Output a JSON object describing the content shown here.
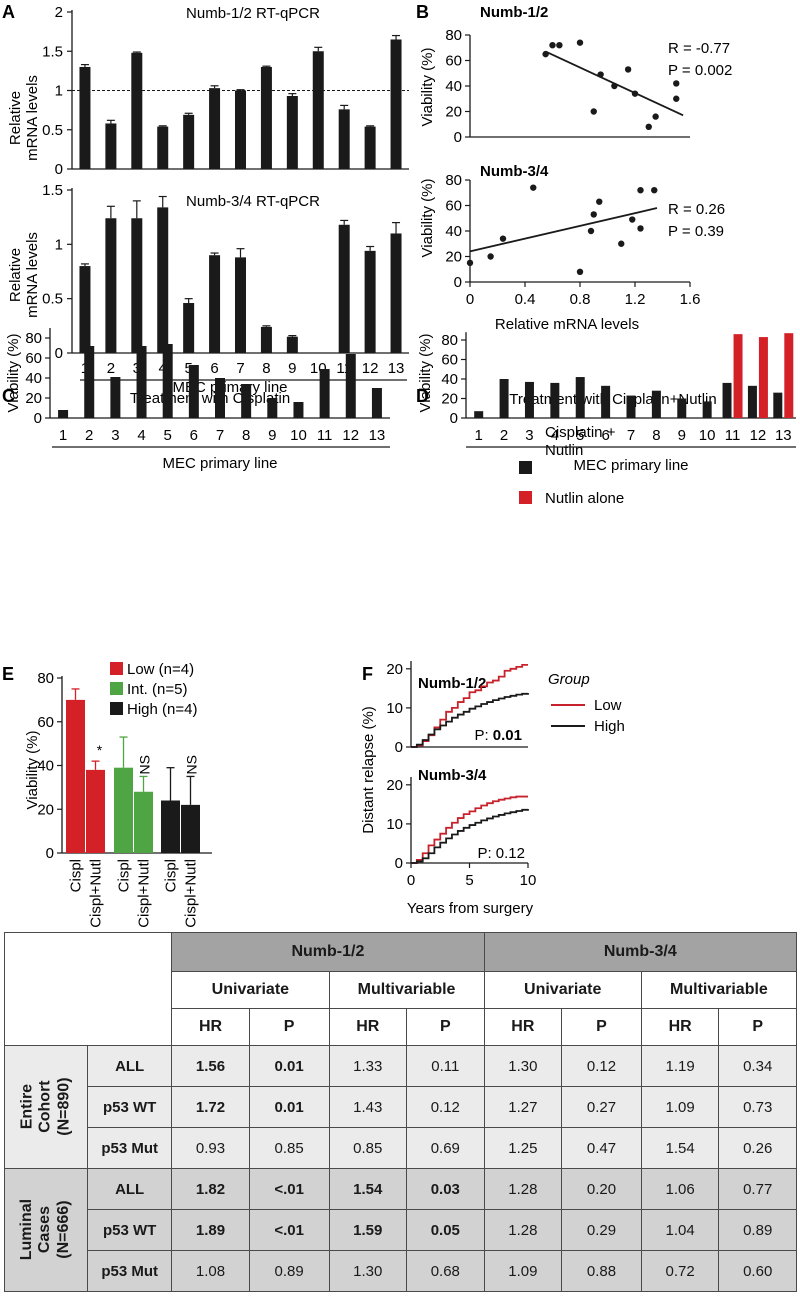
{
  "panel_letters": {
    "A": "A",
    "B": "B",
    "C": "C",
    "D": "D",
    "E": "E",
    "F": "F",
    "G": "G"
  },
  "chart_data": [
    {
      "id": "A_top",
      "type": "bar",
      "title": "Numb-1/2 RT-qPCR",
      "ylabel": "Relative mRNA levels",
      "ylabel_lines": [
        "Relative",
        "mRNA levels"
      ],
      "categories": [
        "1",
        "2",
        "3",
        "4",
        "5",
        "6",
        "7",
        "8",
        "9",
        "10",
        "11",
        "12",
        "13"
      ],
      "values": [
        1.3,
        0.58,
        1.48,
        0.54,
        0.69,
        1.03,
        1.0,
        1.3,
        0.93,
        1.5,
        0.76,
        0.54,
        1.65
      ],
      "errors": [
        0.03,
        0.04,
        0.01,
        0.01,
        0.02,
        0.03,
        0.01,
        0.01,
        0.03,
        0.05,
        0.05,
        0.01,
        0.05
      ],
      "reference_line": 1,
      "ylim": [
        0,
        2
      ],
      "yticks": [
        "0",
        "0.5",
        "1",
        "1.5",
        "2"
      ]
    },
    {
      "id": "A_bottom",
      "type": "bar",
      "title": "Numb-3/4 RT-qPCR",
      "ylabel": "Relative mRNA levels",
      "ylabel_lines": [
        "Relative",
        "mRNA levels"
      ],
      "categories": [
        "1",
        "2",
        "3",
        "4",
        "5",
        "6",
        "7",
        "8",
        "9",
        "10",
        "11",
        "12",
        "13"
      ],
      "values": [
        0.8,
        1.24,
        1.24,
        1.34,
        0.46,
        0.9,
        0.88,
        0.24,
        0.15,
        0.0,
        1.18,
        0.94,
        1.1
      ],
      "errors": [
        0.02,
        0.11,
        0.16,
        0.1,
        0.04,
        0.02,
        0.08,
        0.01,
        0.01,
        0.0,
        0.04,
        0.04,
        0.1
      ],
      "ylim": [
        0,
        1.5
      ],
      "yticks": [
        "0",
        "0.5",
        "1",
        "1.5"
      ],
      "xlabel": "MEC primary line"
    },
    {
      "id": "B_top",
      "type": "scatter",
      "title": "Numb-1/2",
      "ylabel": "Viability (%)",
      "x": [
        0.55,
        0.6,
        0.65,
        0.8,
        0.95,
        1.05,
        0.9,
        1.15,
        1.2,
        1.3,
        1.5,
        1.35,
        1.5
      ],
      "y": [
        65,
        72,
        72,
        74,
        49,
        40,
        20,
        53,
        34,
        8,
        42,
        16,
        30
      ],
      "fit_line": {
        "x": [
          0.55,
          1.55
        ],
        "y": [
          67,
          17
        ]
      },
      "stats": [
        "R = -0.77",
        "P = 0.002"
      ],
      "xlim": [
        0,
        1.6
      ],
      "ylim": [
        0,
        80
      ],
      "yticks": [
        "0",
        "20",
        "40",
        "60",
        "80"
      ]
    },
    {
      "id": "B_bottom",
      "type": "scatter",
      "title": "Numb-3/4",
      "ylabel": "Viability (%)",
      "xlabel": "Relative mRNA levels",
      "x": [
        0.0,
        0.15,
        0.24,
        0.46,
        0.8,
        0.88,
        0.9,
        0.94,
        1.1,
        1.18,
        1.24,
        1.24,
        1.34
      ],
      "y": [
        15,
        20,
        34,
        74,
        8,
        40,
        53,
        63,
        30,
        49,
        42,
        72,
        72
      ],
      "fit_line": {
        "x": [
          0.0,
          1.36
        ],
        "y": [
          24,
          58
        ]
      },
      "stats": [
        "R = 0.26",
        "P = 0.39"
      ],
      "xlim": [
        0,
        1.6
      ],
      "ylim": [
        0,
        80
      ],
      "xticks": [
        "0",
        "0.4",
        "0.8",
        "1.2",
        "1.6"
      ],
      "yticks": [
        "0",
        "20",
        "40",
        "60",
        "80"
      ]
    },
    {
      "id": "C",
      "type": "bar",
      "title": "Treatment with Cisplatin",
      "ylabel": "Viability (%)",
      "xlabel": "MEC primary line",
      "categories": [
        "1",
        "2",
        "3",
        "4",
        "5",
        "6",
        "7",
        "8",
        "9",
        "10",
        "11",
        "12",
        "13"
      ],
      "values": [
        8,
        72,
        41,
        72,
        74,
        53,
        40,
        34,
        20,
        16,
        49,
        64,
        30
      ],
      "ylim": [
        0,
        90
      ],
      "yticks": [
        "0",
        "20",
        "40",
        "60",
        "80"
      ]
    },
    {
      "id": "D",
      "type": "bar",
      "title": "Treatment with Cisplatin+Nutlin",
      "ylabel": "Viability (%)",
      "xlabel": "MEC primary line",
      "categories": [
        "1",
        "2",
        "3",
        "4",
        "5",
        "6",
        "7",
        "8",
        "9",
        "10",
        "11",
        "12",
        "13"
      ],
      "series": [
        {
          "name": "Cisplatin + Nutlin",
          "values": [
            7,
            40,
            37,
            36,
            42,
            33,
            23,
            28,
            20,
            17,
            36,
            33,
            26
          ],
          "color": "#1a1a1a"
        },
        {
          "name": "Nutlin alone",
          "values": [
            null,
            null,
            null,
            null,
            null,
            null,
            null,
            null,
            null,
            null,
            86,
            83,
            87
          ],
          "color": "#d42027"
        }
      ],
      "legend": [
        {
          "lines": [
            "Cisplatin +",
            "Nutlin"
          ],
          "color": "#1a1a1a"
        },
        {
          "lines": [
            "Nutlin alone"
          ],
          "color": "#d42027"
        }
      ],
      "ylim": [
        0,
        88
      ],
      "yticks": [
        "0",
        "20",
        "40",
        "60",
        "80"
      ]
    },
    {
      "id": "E",
      "type": "bar",
      "ylabel": "Viability (%)",
      "categories": [
        "Cispl",
        "Cispl+Nutl",
        "Cispl",
        "Cispl+Nutl",
        "Cispl",
        "Cispl+Nutl"
      ],
      "groups": [
        {
          "name": "Low (n=4)",
          "color": "#d42027",
          "values": [
            70,
            38
          ],
          "errors": [
            5,
            4
          ],
          "annotation": "*"
        },
        {
          "name": "Int. (n=5)",
          "color": "#4fa443",
          "values": [
            39,
            28
          ],
          "errors": [
            14,
            7
          ],
          "annotation": "NS"
        },
        {
          "name": "High (n=4)",
          "color": "#1a1a1a",
          "values": [
            24,
            22
          ],
          "errors": [
            15,
            13
          ],
          "annotation": "NS"
        }
      ],
      "ylim": [
        0,
        80
      ],
      "yticks": [
        "0",
        "20",
        "40",
        "60",
        "80"
      ]
    },
    {
      "id": "F_top",
      "type": "line",
      "title": "Numb-1/2",
      "ylabel": "Distant relapse (%)",
      "x": [
        0,
        0.5,
        1,
        1.5,
        2,
        2.5,
        3,
        3.5,
        4,
        4.5,
        5,
        5.5,
        6,
        6.5,
        7,
        7.5,
        8,
        8.5,
        9,
        9.5,
        10
      ],
      "series": [
        {
          "name": "Low",
          "color": "#c8232c",
          "values": [
            0,
            0.4,
            1.5,
            3,
            5,
            7,
            9,
            10,
            11.5,
            12.5,
            14,
            14.5,
            15.5,
            16.5,
            17,
            18,
            19.5,
            20,
            20.5,
            21,
            21
          ]
        },
        {
          "name": "High",
          "color": "#1a1a1a",
          "values": [
            0,
            0.6,
            1.8,
            3.2,
            4.5,
            5.5,
            6.5,
            7.5,
            8.3,
            9,
            9.8,
            10.4,
            11,
            11.5,
            12,
            12.4,
            12.8,
            13.1,
            13.4,
            13.6,
            13.8
          ]
        }
      ],
      "p_label": "P:",
      "p_value": "0.01",
      "xlim": [
        0,
        10
      ],
      "ylim": [
        0,
        22
      ],
      "yticks": [
        "0",
        "10",
        "20"
      ]
    },
    {
      "id": "F_bottom",
      "type": "line",
      "title": "Numb-3/4",
      "ylabel": "Distant relapse (%)",
      "xlabel": "Years from surgery",
      "x": [
        0,
        0.5,
        1,
        1.5,
        2,
        2.5,
        3,
        3.5,
        4,
        4.5,
        5,
        5.5,
        6,
        6.5,
        7,
        7.5,
        8,
        8.5,
        9,
        9.5,
        10
      ],
      "series": [
        {
          "name": "Low",
          "color": "#c8232c",
          "values": [
            0,
            0.8,
            2.5,
            4.5,
            6,
            7.5,
            9,
            10.3,
            11.5,
            12.5,
            13.2,
            14,
            14.7,
            15.3,
            15.8,
            16.2,
            16.5,
            16.8,
            17,
            17,
            17
          ]
        },
        {
          "name": "High",
          "color": "#1a1a1a",
          "values": [
            0,
            0.4,
            1.2,
            2.5,
            4,
            5.2,
            6.3,
            7.3,
            8.2,
            9,
            9.7,
            10.3,
            10.9,
            11.4,
            11.9,
            12.3,
            12.7,
            13,
            13.3,
            13.6,
            13.8
          ]
        }
      ],
      "p_label": "P: 0.12",
      "xlim": [
        0,
        10
      ],
      "ylim": [
        0,
        22
      ],
      "xticks": [
        "0",
        "5",
        "10"
      ],
      "yticks": [
        "0",
        "10",
        "20"
      ]
    }
  ],
  "legend_F": {
    "title": "Group",
    "low": "Low",
    "high": "High",
    "low_color": "#c8232c",
    "high_color": "#1a1a1a"
  },
  "table": {
    "panel": "G",
    "genes": [
      "Numb-1/2",
      "Numb-3/4"
    ],
    "analyses": [
      "Univariate",
      "Multivariable",
      "Univariate",
      "Multivariable"
    ],
    "stats": [
      "HR",
      "P",
      "HR",
      "P",
      "HR",
      "P",
      "HR",
      "P"
    ],
    "groups": [
      {
        "label_line1": "Entire",
        "label_line2": "Cohort",
        "label_line3": "(N=890)",
        "rows": [
          {
            "name": "ALL",
            "values": [
              "1.56",
              "0.01",
              "1.33",
              "0.11",
              "1.30",
              "0.12",
              "1.19",
              "0.34"
            ]
          },
          {
            "name": "p53 WT",
            "values": [
              "1.72",
              "0.01",
              "1.43",
              "0.12",
              "1.27",
              "0.27",
              "1.09",
              "0.73"
            ]
          },
          {
            "name": "p53 Mut",
            "values": [
              "0.93",
              "0.85",
              "0.85",
              "0.69",
              "1.25",
              "0.47",
              "1.54",
              "0.26"
            ]
          }
        ]
      },
      {
        "label_line1": "Luminal",
        "label_line2": "Cases",
        "label_line3": "(N=666)",
        "rows": [
          {
            "name": "ALL",
            "values": [
              "1.82",
              "<.01",
              "1.54",
              "0.03",
              "1.28",
              "0.20",
              "1.06",
              "0.77"
            ]
          },
          {
            "name": "p53 WT",
            "values": [
              "1.89",
              "<.01",
              "1.59",
              "0.05",
              "1.28",
              "0.29",
              "1.04",
              "0.89"
            ]
          },
          {
            "name": "p53 Mut",
            "values": [
              "1.08",
              "0.89",
              "1.30",
              "0.68",
              "1.09",
              "0.88",
              "0.72",
              "0.60"
            ]
          }
        ]
      }
    ]
  }
}
